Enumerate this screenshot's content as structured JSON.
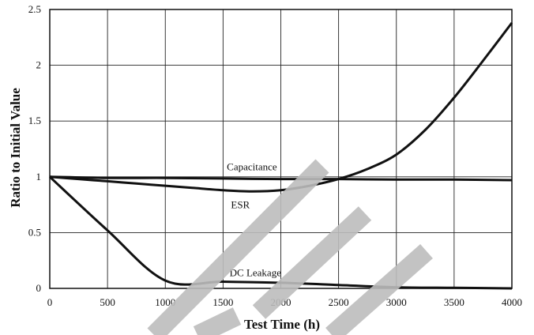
{
  "chart_data": {
    "type": "line",
    "title": "",
    "xlabel": "Test Time (h)",
    "ylabel": "Ratio to Initial Value",
    "xlim": [
      0,
      4000
    ],
    "ylim": [
      0,
      2.5
    ],
    "xticks": [
      0,
      500,
      1000,
      1500,
      2000,
      2500,
      3000,
      3500,
      4000
    ],
    "xtick_labels": [
      "0",
      "500",
      "1000",
      "1500",
      "2000",
      "2500",
      "3000",
      "3500",
      "4000"
    ],
    "yticks": [
      0,
      0.5,
      1,
      1.5,
      2,
      2.5
    ],
    "ytick_labels": [
      "0",
      "0.5",
      "1",
      "1.5",
      "2",
      "2.5"
    ],
    "grid": true,
    "legend": "none",
    "line_color": "#111111",
    "watermark_color": "#bdbdbd",
    "series": [
      {
        "name": "Capacitance",
        "x": [
          0,
          500,
          1000,
          1500,
          2000,
          2500,
          3000,
          3500,
          4000
        ],
        "y": [
          1.0,
          0.99,
          0.99,
          0.985,
          0.98,
          0.98,
          0.975,
          0.975,
          0.97
        ]
      },
      {
        "name": "ESR",
        "x": [
          0,
          250,
          500,
          750,
          1000,
          1250,
          1500,
          1750,
          2000,
          2250,
          2500,
          2750,
          3000,
          3250,
          3500,
          3750,
          4000
        ],
        "y": [
          1.0,
          0.98,
          0.96,
          0.94,
          0.92,
          0.9,
          0.88,
          0.87,
          0.88,
          0.92,
          0.98,
          1.07,
          1.2,
          1.42,
          1.71,
          2.04,
          2.38
        ]
      },
      {
        "name": "DC Leakage",
        "x": [
          0,
          500,
          1000,
          1500,
          2000,
          2500,
          3000,
          3500,
          4000
        ],
        "y": [
          1.0,
          0.52,
          0.07,
          0.06,
          0.05,
          0.03,
          0.01,
          0.005,
          0.0
        ]
      }
    ],
    "annotations": [
      {
        "text": "Capacitance",
        "x": 1750,
        "y": 1.06
      },
      {
        "text": "ESR",
        "x": 1650,
        "y": 0.72
      },
      {
        "text": "DC Leakage",
        "x": 1780,
        "y": 0.11
      }
    ]
  }
}
